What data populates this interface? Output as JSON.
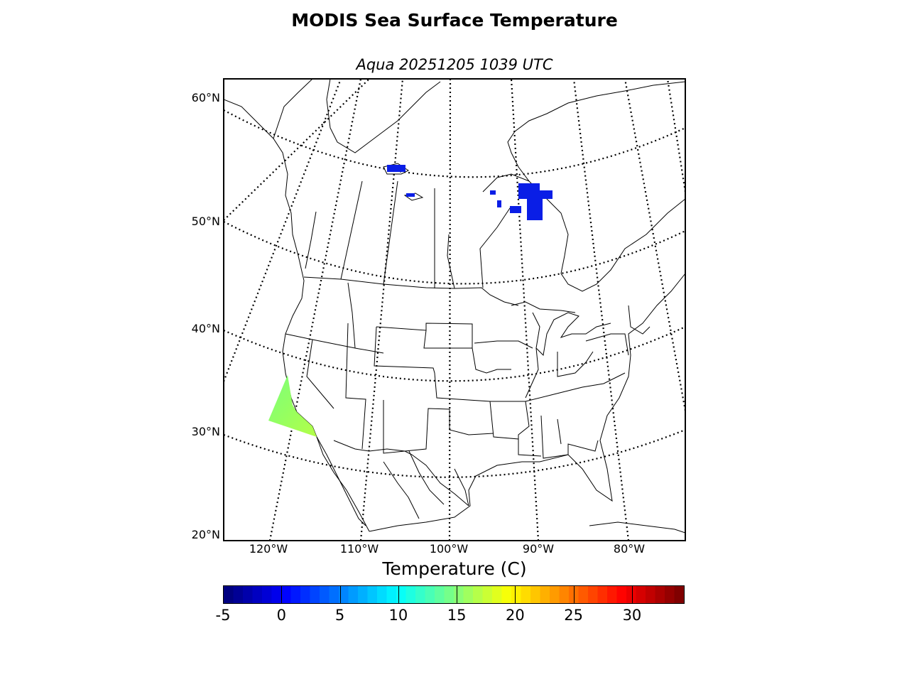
{
  "title": "MODIS Sea Surface Temperature",
  "subtitle": "Aqua 20251205 1039 UTC",
  "map": {
    "projection": "lambert-conformal",
    "region": "North America",
    "lat_labels": [
      "60°N",
      "50°N",
      "40°N",
      "30°N",
      "20°N"
    ],
    "lon_labels": [
      "120°W",
      "110°W",
      "100°W",
      "90°W",
      "80°W"
    ],
    "features": [
      "coastlines",
      "country-borders",
      "state-province-borders",
      "lakes",
      "parallels",
      "meridians"
    ],
    "sst_patches": [
      {
        "area": "Pacific off California / Baja",
        "approx_temp_c": 17
      },
      {
        "area": "Hudson Bay lowlands lakes",
        "approx_temp_c": 0
      },
      {
        "area": "Lake Athabasca",
        "approx_temp_c": 0
      }
    ]
  },
  "colorbar": {
    "label": "Temperature (C)",
    "min": -5,
    "max": 34.5,
    "colormap": "jet",
    "ticks": [
      "-5",
      "0",
      "5",
      "10",
      "15",
      "20",
      "25",
      "30"
    ]
  }
}
